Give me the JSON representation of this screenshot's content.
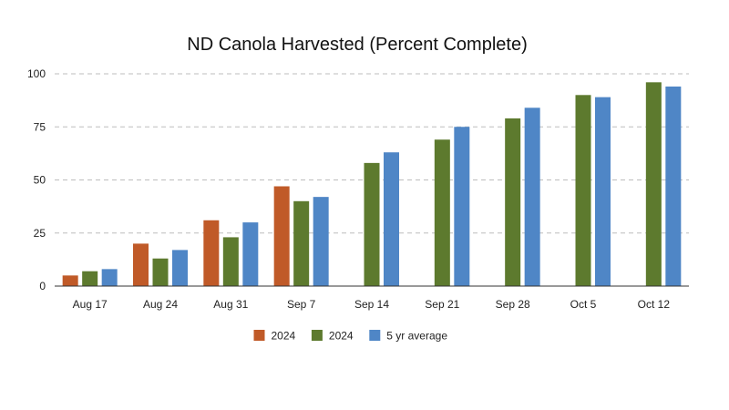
{
  "chart_data": {
    "type": "bar",
    "title": "ND Canola Harvested (Percent Complete)",
    "xlabel": "",
    "ylabel": "",
    "ylim": [
      0,
      100
    ],
    "yticks": [
      0,
      25,
      50,
      75,
      100
    ],
    "grid": true,
    "legend_position": "bottom",
    "categories": [
      "Aug 17",
      "Aug 24",
      "Aug 31",
      "Sep 7",
      "Sep 14",
      "Sep 21",
      "Sep 28",
      "Oct 5",
      "Oct 12"
    ],
    "series": [
      {
        "name": "2024",
        "color": "#c05a28",
        "values": [
          5,
          20,
          31,
          47,
          null,
          null,
          null,
          null,
          null
        ]
      },
      {
        "name": "2024",
        "color": "#5d7a2e",
        "values": [
          7,
          13,
          23,
          40,
          58,
          69,
          79,
          90,
          96
        ]
      },
      {
        "name": "5 yr average",
        "color": "#4f86c6",
        "values": [
          8,
          17,
          30,
          42,
          63,
          75,
          84,
          89,
          94
        ]
      }
    ]
  }
}
